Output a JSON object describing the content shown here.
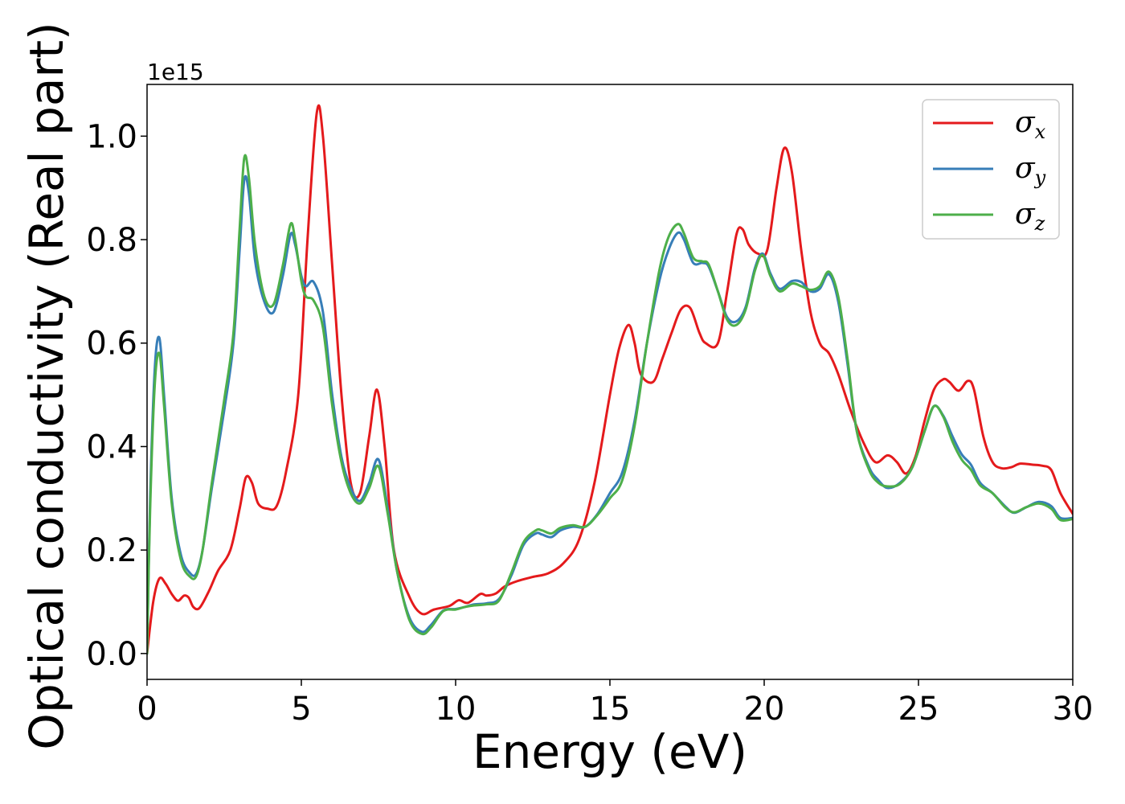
{
  "chart_data": {
    "type": "line",
    "title": "",
    "xlabel": "Energy (eV)",
    "ylabel": "Optical conductivity (Real part)",
    "y_offset_label": "1e15",
    "xlim": [
      0,
      30
    ],
    "ylim": [
      -0.05,
      1.1
    ],
    "xticks": [
      0,
      5,
      10,
      15,
      20,
      25,
      30
    ],
    "xtick_labels": [
      "0",
      "5",
      "10",
      "15",
      "20",
      "25",
      "30"
    ],
    "yticks": [
      0.0,
      0.2,
      0.4,
      0.6,
      0.8,
      1.0
    ],
    "ytick_labels": [
      "0.0",
      "0.2",
      "0.4",
      "0.6",
      "0.8",
      "1.0"
    ],
    "grid": false,
    "legend_position": "top-right",
    "series": [
      {
        "name": "σx",
        "symbol": "σ",
        "subscript": "x",
        "color": "#e41a1c",
        "points": [
          [
            0,
            0
          ],
          [
            0.2,
            0.1
          ],
          [
            0.4,
            0.145
          ],
          [
            0.6,
            0.135
          ],
          [
            0.8,
            0.115
          ],
          [
            1.0,
            0.102
          ],
          [
            1.2,
            0.112
          ],
          [
            1.35,
            0.108
          ],
          [
            1.5,
            0.09
          ],
          [
            1.7,
            0.088
          ],
          [
            2.0,
            0.12
          ],
          [
            2.3,
            0.16
          ],
          [
            2.7,
            0.2
          ],
          [
            3.0,
            0.28
          ],
          [
            3.2,
            0.34
          ],
          [
            3.4,
            0.33
          ],
          [
            3.6,
            0.29
          ],
          [
            3.9,
            0.28
          ],
          [
            4.2,
            0.285
          ],
          [
            4.5,
            0.35
          ],
          [
            4.9,
            0.5
          ],
          [
            5.2,
            0.8
          ],
          [
            5.5,
            1.045
          ],
          [
            5.7,
            1.0
          ],
          [
            6.0,
            0.75
          ],
          [
            6.3,
            0.5
          ],
          [
            6.6,
            0.33
          ],
          [
            6.9,
            0.31
          ],
          [
            7.2,
            0.42
          ],
          [
            7.45,
            0.51
          ],
          [
            7.7,
            0.4
          ],
          [
            8.0,
            0.2
          ],
          [
            8.5,
            0.11
          ],
          [
            8.9,
            0.077
          ],
          [
            9.3,
            0.085
          ],
          [
            9.8,
            0.092
          ],
          [
            10.1,
            0.103
          ],
          [
            10.4,
            0.098
          ],
          [
            10.8,
            0.115
          ],
          [
            11.0,
            0.112
          ],
          [
            11.3,
            0.116
          ],
          [
            11.6,
            0.13
          ],
          [
            12.0,
            0.14
          ],
          [
            12.5,
            0.148
          ],
          [
            13.0,
            0.155
          ],
          [
            13.5,
            0.175
          ],
          [
            14.0,
            0.22
          ],
          [
            14.5,
            0.33
          ],
          [
            15.0,
            0.5
          ],
          [
            15.3,
            0.59
          ],
          [
            15.6,
            0.635
          ],
          [
            15.8,
            0.6
          ],
          [
            16.0,
            0.54
          ],
          [
            16.4,
            0.525
          ],
          [
            16.7,
            0.57
          ],
          [
            17.0,
            0.62
          ],
          [
            17.3,
            0.665
          ],
          [
            17.6,
            0.668
          ],
          [
            17.9,
            0.62
          ],
          [
            18.1,
            0.6
          ],
          [
            18.5,
            0.6
          ],
          [
            18.8,
            0.7
          ],
          [
            19.1,
            0.81
          ],
          [
            19.3,
            0.82
          ],
          [
            19.5,
            0.79
          ],
          [
            19.8,
            0.773
          ],
          [
            20.1,
            0.78
          ],
          [
            20.4,
            0.9
          ],
          [
            20.65,
            0.977
          ],
          [
            20.9,
            0.93
          ],
          [
            21.2,
            0.78
          ],
          [
            21.5,
            0.66
          ],
          [
            21.8,
            0.6
          ],
          [
            22.1,
            0.58
          ],
          [
            22.4,
            0.54
          ],
          [
            22.8,
            0.47
          ],
          [
            23.2,
            0.41
          ],
          [
            23.6,
            0.37
          ],
          [
            24.0,
            0.383
          ],
          [
            24.3,
            0.37
          ],
          [
            24.6,
            0.348
          ],
          [
            24.9,
            0.38
          ],
          [
            25.2,
            0.45
          ],
          [
            25.5,
            0.51
          ],
          [
            25.8,
            0.53
          ],
          [
            26.0,
            0.525
          ],
          [
            26.3,
            0.508
          ],
          [
            26.6,
            0.527
          ],
          [
            26.8,
            0.51
          ],
          [
            27.1,
            0.42
          ],
          [
            27.4,
            0.37
          ],
          [
            27.7,
            0.358
          ],
          [
            28.0,
            0.36
          ],
          [
            28.3,
            0.367
          ],
          [
            28.7,
            0.365
          ],
          [
            29.0,
            0.363
          ],
          [
            29.3,
            0.355
          ],
          [
            29.6,
            0.31
          ],
          [
            30.0,
            0.27
          ]
        ]
      },
      {
        "name": "σy",
        "symbol": "σ",
        "subscript": "y",
        "color": "#377eb8",
        "points": [
          [
            0,
            0
          ],
          [
            0.1,
            0.3
          ],
          [
            0.25,
            0.55
          ],
          [
            0.4,
            0.61
          ],
          [
            0.55,
            0.5
          ],
          [
            0.8,
            0.3
          ],
          [
            1.1,
            0.19
          ],
          [
            1.4,
            0.155
          ],
          [
            1.6,
            0.155
          ],
          [
            1.8,
            0.2
          ],
          [
            2.1,
            0.32
          ],
          [
            2.5,
            0.47
          ],
          [
            2.8,
            0.6
          ],
          [
            3.0,
            0.78
          ],
          [
            3.15,
            0.915
          ],
          [
            3.3,
            0.89
          ],
          [
            3.5,
            0.76
          ],
          [
            3.8,
            0.68
          ],
          [
            4.1,
            0.66
          ],
          [
            4.4,
            0.73
          ],
          [
            4.65,
            0.81
          ],
          [
            4.8,
            0.79
          ],
          [
            5.0,
            0.73
          ],
          [
            5.15,
            0.71
          ],
          [
            5.4,
            0.718
          ],
          [
            5.7,
            0.66
          ],
          [
            6.0,
            0.5
          ],
          [
            6.3,
            0.38
          ],
          [
            6.6,
            0.32
          ],
          [
            6.9,
            0.295
          ],
          [
            7.2,
            0.33
          ],
          [
            7.5,
            0.375
          ],
          [
            7.8,
            0.28
          ],
          [
            8.1,
            0.16
          ],
          [
            8.5,
            0.07
          ],
          [
            8.9,
            0.042
          ],
          [
            9.2,
            0.055
          ],
          [
            9.6,
            0.083
          ],
          [
            10.0,
            0.086
          ],
          [
            10.3,
            0.09
          ],
          [
            10.6,
            0.095
          ],
          [
            11.0,
            0.097
          ],
          [
            11.4,
            0.105
          ],
          [
            11.8,
            0.15
          ],
          [
            12.2,
            0.21
          ],
          [
            12.6,
            0.232
          ],
          [
            12.8,
            0.23
          ],
          [
            13.1,
            0.225
          ],
          [
            13.4,
            0.238
          ],
          [
            13.8,
            0.245
          ],
          [
            14.2,
            0.245
          ],
          [
            14.6,
            0.27
          ],
          [
            15.0,
            0.31
          ],
          [
            15.4,
            0.35
          ],
          [
            15.8,
            0.45
          ],
          [
            16.2,
            0.6
          ],
          [
            16.6,
            0.72
          ],
          [
            16.9,
            0.78
          ],
          [
            17.2,
            0.813
          ],
          [
            17.4,
            0.8
          ],
          [
            17.7,
            0.755
          ],
          [
            18.0,
            0.755
          ],
          [
            18.2,
            0.748
          ],
          [
            18.5,
            0.7
          ],
          [
            18.8,
            0.65
          ],
          [
            19.1,
            0.642
          ],
          [
            19.4,
            0.67
          ],
          [
            19.7,
            0.745
          ],
          [
            19.95,
            0.773
          ],
          [
            20.2,
            0.735
          ],
          [
            20.5,
            0.705
          ],
          [
            20.9,
            0.72
          ],
          [
            21.2,
            0.718
          ],
          [
            21.5,
            0.7
          ],
          [
            21.8,
            0.705
          ],
          [
            22.1,
            0.733
          ],
          [
            22.4,
            0.68
          ],
          [
            22.7,
            0.56
          ],
          [
            23.0,
            0.43
          ],
          [
            23.4,
            0.36
          ],
          [
            23.7,
            0.335
          ],
          [
            24.0,
            0.32
          ],
          [
            24.4,
            0.33
          ],
          [
            24.8,
            0.36
          ],
          [
            25.2,
            0.43
          ],
          [
            25.5,
            0.478
          ],
          [
            25.8,
            0.46
          ],
          [
            26.1,
            0.42
          ],
          [
            26.4,
            0.385
          ],
          [
            26.7,
            0.365
          ],
          [
            27.0,
            0.33
          ],
          [
            27.4,
            0.31
          ],
          [
            27.8,
            0.285
          ],
          [
            28.1,
            0.272
          ],
          [
            28.5,
            0.283
          ],
          [
            28.9,
            0.293
          ],
          [
            29.3,
            0.285
          ],
          [
            29.6,
            0.262
          ],
          [
            30.0,
            0.262
          ]
        ]
      },
      {
        "name": "σz",
        "symbol": "σ",
        "subscript": "z",
        "color": "#4daf4a",
        "points": [
          [
            0,
            0
          ],
          [
            0.1,
            0.28
          ],
          [
            0.25,
            0.52
          ],
          [
            0.4,
            0.58
          ],
          [
            0.55,
            0.48
          ],
          [
            0.8,
            0.29
          ],
          [
            1.1,
            0.18
          ],
          [
            1.4,
            0.148
          ],
          [
            1.6,
            0.15
          ],
          [
            1.8,
            0.2
          ],
          [
            2.1,
            0.33
          ],
          [
            2.5,
            0.49
          ],
          [
            2.8,
            0.62
          ],
          [
            3.0,
            0.82
          ],
          [
            3.15,
            0.958
          ],
          [
            3.3,
            0.92
          ],
          [
            3.5,
            0.79
          ],
          [
            3.8,
            0.69
          ],
          [
            4.1,
            0.675
          ],
          [
            4.4,
            0.75
          ],
          [
            4.65,
            0.83
          ],
          [
            4.8,
            0.8
          ],
          [
            5.0,
            0.72
          ],
          [
            5.15,
            0.69
          ],
          [
            5.4,
            0.682
          ],
          [
            5.7,
            0.63
          ],
          [
            6.0,
            0.48
          ],
          [
            6.3,
            0.37
          ],
          [
            6.6,
            0.31
          ],
          [
            6.9,
            0.29
          ],
          [
            7.2,
            0.32
          ],
          [
            7.5,
            0.362
          ],
          [
            7.8,
            0.27
          ],
          [
            8.1,
            0.16
          ],
          [
            8.5,
            0.065
          ],
          [
            8.9,
            0.038
          ],
          [
            9.2,
            0.05
          ],
          [
            9.6,
            0.082
          ],
          [
            10.0,
            0.085
          ],
          [
            10.3,
            0.09
          ],
          [
            10.6,
            0.093
          ],
          [
            11.0,
            0.095
          ],
          [
            11.4,
            0.102
          ],
          [
            11.8,
            0.155
          ],
          [
            12.2,
            0.215
          ],
          [
            12.6,
            0.238
          ],
          [
            12.8,
            0.238
          ],
          [
            13.1,
            0.232
          ],
          [
            13.4,
            0.243
          ],
          [
            13.8,
            0.248
          ],
          [
            14.2,
            0.245
          ],
          [
            14.6,
            0.268
          ],
          [
            15.0,
            0.3
          ],
          [
            15.4,
            0.335
          ],
          [
            15.8,
            0.44
          ],
          [
            16.2,
            0.6
          ],
          [
            16.6,
            0.74
          ],
          [
            16.9,
            0.805
          ],
          [
            17.2,
            0.83
          ],
          [
            17.4,
            0.812
          ],
          [
            17.7,
            0.765
          ],
          [
            18.0,
            0.758
          ],
          [
            18.2,
            0.752
          ],
          [
            18.5,
            0.7
          ],
          [
            18.8,
            0.645
          ],
          [
            19.1,
            0.635
          ],
          [
            19.4,
            0.665
          ],
          [
            19.7,
            0.74
          ],
          [
            19.95,
            0.77
          ],
          [
            20.2,
            0.73
          ],
          [
            20.5,
            0.7
          ],
          [
            20.9,
            0.715
          ],
          [
            21.2,
            0.71
          ],
          [
            21.5,
            0.703
          ],
          [
            21.8,
            0.71
          ],
          [
            22.1,
            0.738
          ],
          [
            22.4,
            0.69
          ],
          [
            22.7,
            0.57
          ],
          [
            23.0,
            0.43
          ],
          [
            23.4,
            0.355
          ],
          [
            23.7,
            0.33
          ],
          [
            24.0,
            0.323
          ],
          [
            24.4,
            0.328
          ],
          [
            24.8,
            0.36
          ],
          [
            25.2,
            0.43
          ],
          [
            25.5,
            0.478
          ],
          [
            25.8,
            0.458
          ],
          [
            26.1,
            0.41
          ],
          [
            26.4,
            0.375
          ],
          [
            26.7,
            0.355
          ],
          [
            27.0,
            0.325
          ],
          [
            27.4,
            0.31
          ],
          [
            27.8,
            0.283
          ],
          [
            28.1,
            0.273
          ],
          [
            28.5,
            0.283
          ],
          [
            28.9,
            0.29
          ],
          [
            29.3,
            0.28
          ],
          [
            29.6,
            0.258
          ],
          [
            30.0,
            0.26
          ]
        ]
      }
    ]
  }
}
